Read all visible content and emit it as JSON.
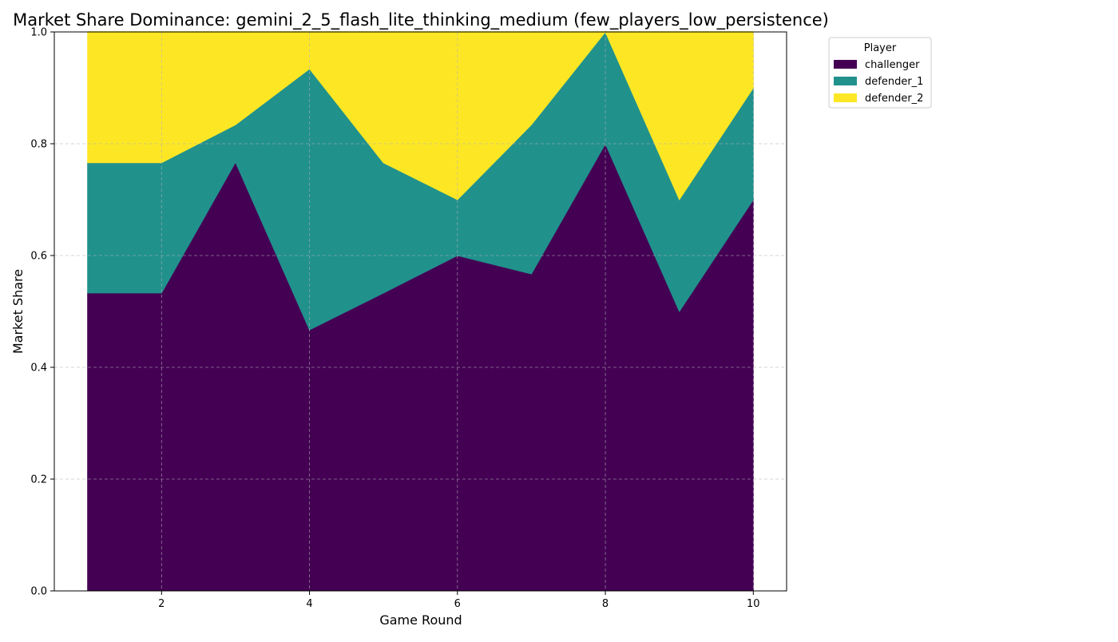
{
  "chart_data": {
    "type": "area",
    "stacked": true,
    "title": "Market Share Dominance: gemini_2_5_flash_lite_thinking_medium (few_players_low_persistence)",
    "xlabel": "Game Round",
    "ylabel": "Market Share",
    "x": [
      1,
      2,
      3,
      4,
      5,
      6,
      7,
      8,
      9,
      10
    ],
    "xticks": [
      2,
      4,
      6,
      8,
      10
    ],
    "yticks": [
      0.0,
      0.2,
      0.4,
      0.6,
      0.8,
      1.0
    ],
    "ytick_labels": [
      "0.0",
      "0.2",
      "0.4",
      "0.6",
      "0.8",
      "1.0"
    ],
    "xlim": [
      0.55,
      10.45
    ],
    "ylim": [
      0.0,
      1.0
    ],
    "grid": true,
    "legend": {
      "title": "Player",
      "placement": "outside-upper-right"
    },
    "series": [
      {
        "name": "challenger",
        "color": "#440154",
        "values": [
          0.533,
          0.533,
          0.767,
          0.467,
          0.533,
          0.6,
          0.567,
          0.8,
          0.5,
          0.7
        ]
      },
      {
        "name": "defender_1",
        "color": "#21918c",
        "values": [
          0.233,
          0.233,
          0.067,
          0.467,
          0.233,
          0.1,
          0.267,
          0.2,
          0.2,
          0.2
        ]
      },
      {
        "name": "defender_2",
        "color": "#fde725",
        "values": [
          0.234,
          0.234,
          0.166,
          0.066,
          0.234,
          0.3,
          0.166,
          0.0,
          0.3,
          0.1
        ]
      }
    ]
  }
}
